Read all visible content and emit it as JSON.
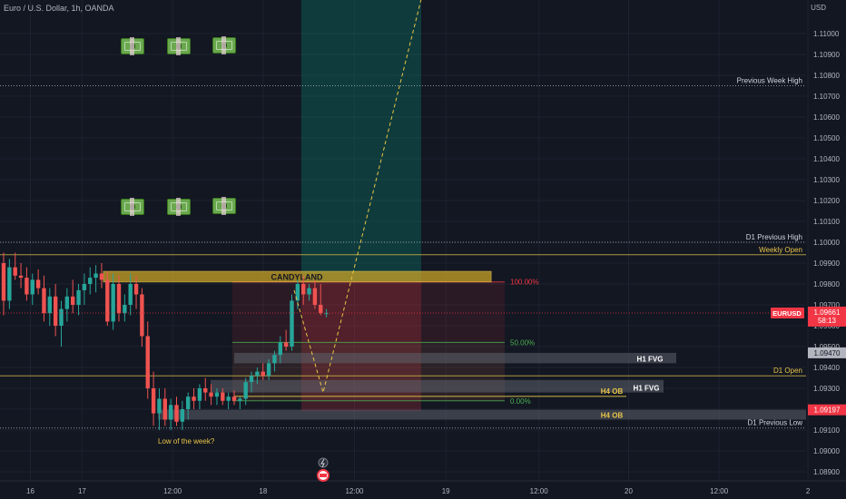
{
  "header": {
    "title": "Euro / U.S. Dollar, 1h, OANDA",
    "currency": "USD"
  },
  "chart_data": {
    "type": "candlestick",
    "ylim": [
      1.0885,
      1.1115
    ],
    "y_ticks": [
      "1.11000",
      "1.10900",
      "1.10800",
      "1.10700",
      "1.10600",
      "1.10500",
      "1.10400",
      "1.10300",
      "1.10200",
      "1.10100",
      "1.10000",
      "1.09900",
      "1.09800",
      "1.09700",
      "1.09600",
      "1.09500",
      "1.09400",
      "1.09300",
      "1.09200",
      "1.09100",
      "1.09000",
      "1.08900"
    ],
    "x_ticks": [
      {
        "label": "16",
        "pos": 0.036
      },
      {
        "label": "17",
        "pos": 0.097
      },
      {
        "label": "12:00",
        "pos": 0.204
      },
      {
        "label": "18",
        "pos": 0.311
      },
      {
        "label": "12:00",
        "pos": 0.419
      },
      {
        "label": "19",
        "pos": 0.527
      },
      {
        "label": "12:00",
        "pos": 0.637
      },
      {
        "label": "20",
        "pos": 0.743
      },
      {
        "label": "12:00",
        "pos": 0.85
      },
      {
        "label": "2",
        "pos": 0.955
      }
    ],
    "candles": [
      [
        1.099,
        1.0995,
        1.0965,
        1.0972
      ],
      [
        1.0972,
        1.0992,
        1.0968,
        1.0988
      ],
      [
        1.0988,
        1.0995,
        1.0982,
        1.0984
      ],
      [
        1.0984,
        1.099,
        1.0978,
        1.0983
      ],
      [
        1.0983,
        1.0988,
        1.0972,
        1.0975
      ],
      [
        1.0975,
        1.0985,
        1.097,
        1.0982
      ],
      [
        1.0982,
        1.0987,
        1.0975,
        1.0978
      ],
      [
        1.0978,
        1.0984,
        1.0962,
        1.0966
      ],
      [
        1.0966,
        1.0978,
        1.096,
        1.0974
      ],
      [
        1.0974,
        1.098,
        1.0955,
        1.096
      ],
      [
        1.096,
        1.0972,
        1.095,
        1.0968
      ],
      [
        1.0968,
        1.0978,
        1.0962,
        1.0974
      ],
      [
        1.0974,
        1.0982,
        1.0966,
        1.097
      ],
      [
        1.097,
        1.098,
        1.0965,
        1.0977
      ],
      [
        1.0977,
        1.0985,
        1.097,
        1.098
      ],
      [
        1.098,
        1.0988,
        1.0975,
        1.0983
      ],
      [
        1.0983,
        1.0989,
        1.0976,
        1.0985
      ],
      [
        1.0985,
        1.099,
        1.0978,
        1.0982
      ],
      [
        1.0982,
        1.0986,
        1.096,
        1.0962
      ],
      [
        1.0962,
        1.0985,
        1.0958,
        1.098
      ],
      [
        1.098,
        1.0984,
        1.0962,
        1.0966
      ],
      [
        1.0966,
        1.0975,
        1.0962,
        1.097
      ],
      [
        1.097,
        1.0985,
        1.0965,
        1.098
      ],
      [
        1.098,
        1.0984,
        1.0968,
        1.0975
      ],
      [
        1.0975,
        1.0978,
        1.095,
        1.0955
      ],
      [
        1.0955,
        1.0962,
        1.0925,
        1.093
      ],
      [
        1.093,
        1.0938,
        1.0912,
        1.0918
      ],
      [
        1.0918,
        1.093,
        1.091,
        1.0925
      ],
      [
        1.0925,
        1.093,
        1.0912,
        1.0915
      ],
      [
        1.0915,
        1.0925,
        1.091,
        1.0922
      ],
      [
        1.0922,
        1.0926,
        1.0912,
        1.0914
      ],
      [
        1.0914,
        1.0924,
        1.091,
        1.092
      ],
      [
        1.092,
        1.0928,
        1.0915,
        1.0926
      ],
      [
        1.0926,
        1.093,
        1.092,
        1.0924
      ],
      [
        1.0924,
        1.0932,
        1.092,
        1.093
      ],
      [
        1.093,
        1.0935,
        1.0924,
        1.0928
      ],
      [
        1.0928,
        1.0932,
        1.0922,
        1.0926
      ],
      [
        1.0926,
        1.093,
        1.0922,
        1.0928
      ],
      [
        1.0928,
        1.093,
        1.0922,
        1.0924
      ],
      [
        1.0924,
        1.0928,
        1.092,
        1.0926
      ],
      [
        1.0926,
        1.0929,
        1.0922,
        1.0924
      ],
      [
        1.0924,
        1.0926,
        1.092,
        1.0925
      ],
      [
        1.0925,
        1.0935,
        1.0922,
        1.0933
      ],
      [
        1.0933,
        1.0938,
        1.0928,
        1.0936
      ],
      [
        1.0936,
        1.094,
        1.0932,
        1.0938
      ],
      [
        1.0938,
        1.0942,
        1.0934,
        1.0936
      ],
      [
        1.0936,
        1.0944,
        1.0934,
        1.0942
      ],
      [
        1.0942,
        1.0948,
        1.0938,
        1.0946
      ],
      [
        1.0946,
        1.0955,
        1.0942,
        1.0952
      ],
      [
        1.0952,
        1.0958,
        1.0948,
        1.095
      ],
      [
        1.095,
        1.0975,
        1.0948,
        1.0972
      ],
      [
        1.0972,
        1.0982,
        1.0968,
        1.098
      ],
      [
        1.098,
        1.0984,
        1.097,
        1.0975
      ],
      [
        1.0975,
        1.098,
        1.0972,
        1.0978
      ],
      [
        1.0978,
        1.0982,
        1.0968,
        1.097
      ],
      [
        1.097,
        1.098,
        1.0965,
        1.0966
      ],
      [
        1.0966,
        1.0968,
        1.0964,
        1.0966
      ]
    ],
    "levels": [
      {
        "label": "Previous Week High",
        "price": 1.1075,
        "color": "#b2b5be",
        "style": "dotted",
        "label_color": "#d1d4dc"
      },
      {
        "label": "D1 Previous High",
        "price": 1.1,
        "color": "#b2b5be",
        "style": "dotted",
        "label_color": "#d1d4dc"
      },
      {
        "label": "Weekly Open",
        "price": 1.0994,
        "color": "#d4b84a",
        "style": "solid",
        "label_color": "#e8c547"
      },
      {
        "label": "D1 Open",
        "price": 1.0936,
        "color": "#d4b84a",
        "style": "solid",
        "label_color": "#e8c547"
      },
      {
        "label": "D1 Previous Low",
        "price": 1.0911,
        "color": "#b2b5be",
        "style": "dotted",
        "label_color": "#d1d4dc"
      }
    ],
    "zones": [
      {
        "label": "CANDYLAND",
        "top": 1.0986,
        "bottom": 1.0981,
        "color": "#c9a227",
        "label_color": "#131722"
      },
      {
        "label": "H1 FVG",
        "top": 1.0947,
        "bottom": 1.0942,
        "color": "#5d606b",
        "label_color": "#ffffff"
      },
      {
        "label": "H1 FVG",
        "top": 1.0934,
        "bottom": 1.0928,
        "color": "#5d606b",
        "label_color": "#ffffff"
      },
      {
        "label": "H4 OB",
        "top": 1.0932,
        "bottom": 1.0927,
        "color": "#d4b84a",
        "label_color": "#e8c547"
      },
      {
        "label": "H4 OB",
        "top": 1.09197,
        "bottom": 1.0915,
        "color": "#5d606b",
        "label_color": "#e8c547"
      }
    ],
    "fib_levels": [
      {
        "label": "100.00%",
        "price": 1.0981,
        "color": "#f23645"
      },
      {
        "label": "50.00%",
        "price": 1.0952,
        "color": "#4caf50"
      },
      {
        "label": "0.00%",
        "price": 1.0924,
        "color": "#4caf50"
      }
    ],
    "annotation": "Low of the week?",
    "price_labels": [
      {
        "label": "EURUSD",
        "price": "1.09661",
        "timer": "58:13",
        "color": "#f23645"
      },
      {
        "label": "",
        "price": "1.09470",
        "color": "#b2b5be"
      },
      {
        "label": "",
        "price": "1.09197",
        "color": "#f23645"
      }
    ],
    "up_color": "#26a69a",
    "down_color": "#ef5350"
  },
  "icons": [
    "money-with-wings-icon",
    "lightning-icon",
    "calendar-event-icon"
  ]
}
